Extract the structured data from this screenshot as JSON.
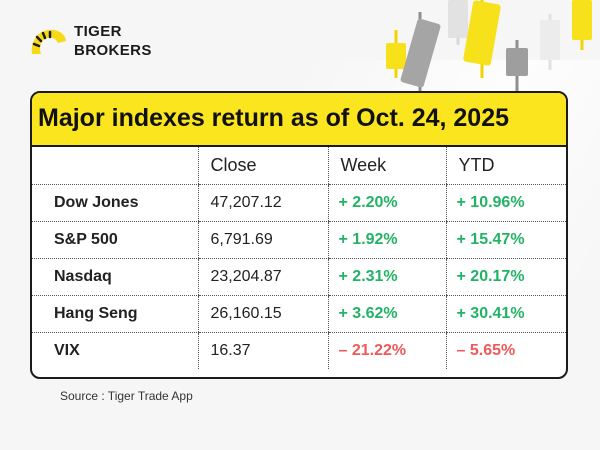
{
  "brand": {
    "line1": "TIGER",
    "line2": "BROKERS"
  },
  "card": {
    "title": "Major indexes return as of Oct. 24, 2025",
    "columns": [
      "",
      "Close",
      "Week",
      "YTD"
    ],
    "rows": [
      {
        "name": "Dow Jones",
        "close": "47,207.12",
        "week": "+ 2.20%",
        "ytd": "+ 10.96%"
      },
      {
        "name": "S&P 500",
        "close": "6,791.69",
        "week": "+ 1.92%",
        "ytd": "+ 15.47%"
      },
      {
        "name": "Nasdaq",
        "close": "23,204.87",
        "week": "+ 2.31%",
        "ytd": "+ 20.17%"
      },
      {
        "name": "Hang Seng",
        "close": "26,160.15",
        "week": "+ 3.62%",
        "ytd": "+ 30.41%"
      },
      {
        "name": "VIX",
        "close": "16.37",
        "week": "– 21.22%",
        "ytd": "– 5.65%"
      }
    ]
  },
  "source": "Source : Tiger Trade App",
  "colors": {
    "accent": "#fbe51f",
    "positive": "#23b365",
    "negative": "#ee5a5a",
    "candle_gray": "#9e9e9e"
  }
}
